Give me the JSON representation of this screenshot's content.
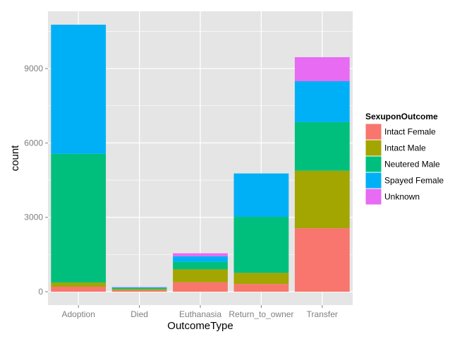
{
  "chart_data": {
    "type": "bar",
    "stacked": true,
    "xlabel": "OutcomeType",
    "ylabel": "count",
    "categories": [
      "Adoption",
      "Died",
      "Euthanasia",
      "Return_to_owner",
      "Transfer"
    ],
    "y_ticks": [
      0,
      3000,
      6000,
      9000
    ],
    "ylim": [
      -540,
      11310
    ],
    "grid": true,
    "legend": {
      "title": "SexuponOutcome",
      "placement": "right"
    },
    "series": [
      {
        "name": "Intact Female",
        "color": "#F8766D",
        "values": [
          200,
          60,
          380,
          310,
          2560
        ]
      },
      {
        "name": "Intact Male",
        "color": "#A3A500",
        "values": [
          170,
          50,
          520,
          450,
          2320
        ]
      },
      {
        "name": "Neutered Male",
        "color": "#00BF7D",
        "values": [
          5190,
          40,
          300,
          2260,
          1960
        ]
      },
      {
        "name": "Spayed Female",
        "color": "#00B0F6",
        "values": [
          5210,
          30,
          230,
          1750,
          1650
        ]
      },
      {
        "name": "Unknown",
        "color": "#E76BF3",
        "values": [
          0,
          10,
          120,
          0,
          970
        ]
      }
    ],
    "colors": {
      "panel_background": "#E5E5E5",
      "grid": "#FFFFFF"
    }
  }
}
